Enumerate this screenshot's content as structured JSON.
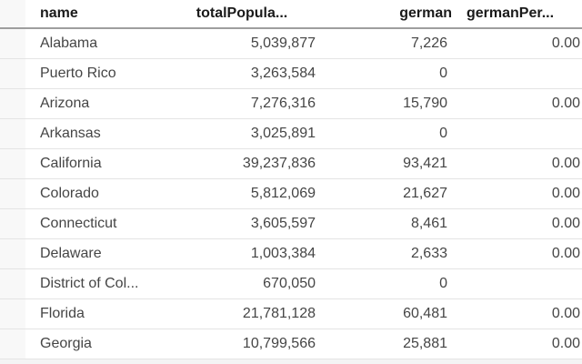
{
  "table": {
    "columns": [
      {
        "id": "name",
        "label": "name"
      },
      {
        "id": "totalPopulation",
        "label": "totalPopula..."
      },
      {
        "id": "german",
        "label": "german"
      },
      {
        "id": "germanPercent",
        "label": "germanPer..."
      }
    ],
    "rows": [
      [
        "Alabama",
        "5,039,877",
        "7,226",
        "0.00"
      ],
      [
        "Puerto Rico",
        "3,263,584",
        "0",
        ""
      ],
      [
        "Arizona",
        "7,276,316",
        "15,790",
        "0.00"
      ],
      [
        "Arkansas",
        "3,025,891",
        "0",
        ""
      ],
      [
        "California",
        "39,237,836",
        "93,421",
        "0.00"
      ],
      [
        "Colorado",
        "5,812,069",
        "21,627",
        "0.00"
      ],
      [
        "Connecticut",
        "3,605,597",
        "8,461",
        "0.00"
      ],
      [
        "Delaware",
        "1,003,384",
        "2,633",
        "0.00"
      ],
      [
        "District of Col...",
        "670,050",
        "0",
        ""
      ],
      [
        "Florida",
        "21,781,128",
        "60,481",
        "0.00"
      ],
      [
        "Georgia",
        "10,799,566",
        "25,881",
        "0.00"
      ]
    ]
  },
  "colors": {
    "background": "#ffffff",
    "header_text": "#1a1a1a",
    "cell_text": "#454545",
    "header_border": "#9e9e9e",
    "row_divider": "#e4e4e4",
    "gutter_background": "#f8f8f8",
    "scroll_track": "#f4f4f4"
  }
}
